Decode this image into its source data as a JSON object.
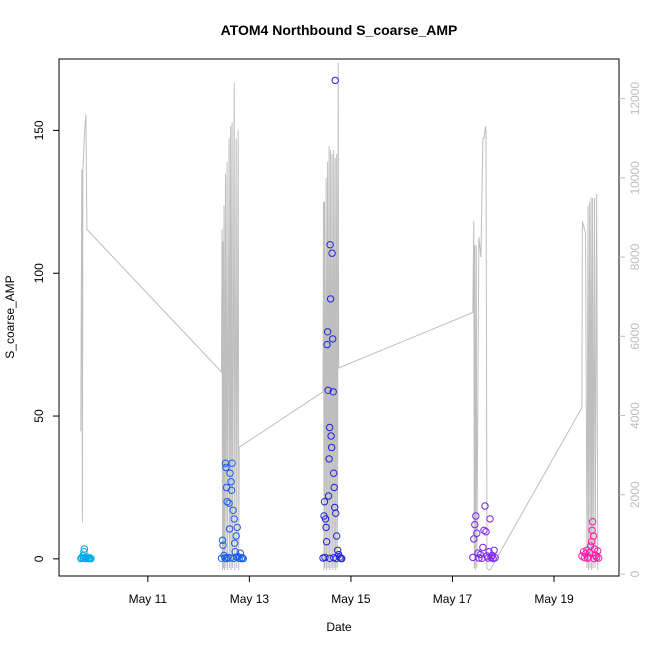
{
  "chart_data": {
    "type": "scatter",
    "title": "ATOM4 Northbound S_coarse_AMP",
    "xlabel": "Date",
    "ylabel": "S_coarse_AMP",
    "x_ticks": [
      {
        "label": "May 11",
        "day": 11.0
      },
      {
        "label": "May 13",
        "day": 13.0
      },
      {
        "label": "May 15",
        "day": 15.0
      },
      {
        "label": "May 17",
        "day": 17.0
      },
      {
        "label": "May 19",
        "day": 19.0
      }
    ],
    "xlim_day": [
      9.25,
      20.28
    ],
    "ylim": [
      -6,
      175
    ],
    "y_ticks": [
      0,
      50,
      100,
      150
    ],
    "y2lim": [
      -50,
      13000
    ],
    "y2_ticks": [
      0,
      2000,
      4000,
      6000,
      8000,
      10000,
      12000
    ],
    "y2_tick_labels": [
      "0",
      "2000",
      "4000",
      "6000",
      "8000",
      "10000",
      "12000"
    ],
    "colors": {
      "line": "#bebebe",
      "axis": "#000000",
      "right_axis": "#bdbdbd",
      "point_palette": [
        "#00a8ec",
        "#1a5cf0",
        "#2222e0",
        "#7a22ee",
        "#c81ee6",
        "#ff1aaa"
      ]
    },
    "series": [
      {
        "color": "#00a8ec",
        "points": [
          [
            9.68,
            0.1
          ],
          [
            9.7,
            0.4
          ],
          [
            9.72,
            1.1
          ],
          [
            9.73,
            0.2
          ],
          [
            9.74,
            2.5
          ],
          [
            9.75,
            3.5
          ],
          [
            9.76,
            0.3
          ],
          [
            9.78,
            0.1
          ],
          [
            9.8,
            0.6
          ],
          [
            9.82,
            0.2
          ],
          [
            9.84,
            0.1
          ],
          [
            9.86,
            0.3
          ],
          [
            9.88,
            0.1
          ]
        ]
      },
      {
        "color": "#1a5cf0",
        "points": [
          [
            12.45,
            0.2
          ],
          [
            12.47,
            6.5
          ],
          [
            12.48,
            4.8
          ],
          [
            12.5,
            1.2
          ],
          [
            12.52,
            0.3
          ],
          [
            12.53,
            33.5
          ],
          [
            12.54,
            32.0
          ],
          [
            12.55,
            25.0
          ],
          [
            12.56,
            20.0
          ],
          [
            12.58,
            0.5
          ],
          [
            12.6,
            19.5
          ],
          [
            12.61,
            10.5
          ],
          [
            12.62,
            30.0
          ],
          [
            12.64,
            27.0
          ],
          [
            12.65,
            24.0
          ],
          [
            12.66,
            33.5
          ],
          [
            12.68,
            17.0
          ],
          [
            12.7,
            14.0
          ],
          [
            12.71,
            5.5
          ],
          [
            12.72,
            2.5
          ],
          [
            12.74,
            8.0
          ],
          [
            12.76,
            11.0
          ],
          [
            12.78,
            0.8
          ],
          [
            12.8,
            0.2
          ],
          [
            12.82,
            2.0
          ],
          [
            12.84,
            0.1
          ],
          [
            12.86,
            0.4
          ],
          [
            12.88,
            0.1
          ],
          [
            12.55,
            0.1
          ],
          [
            12.63,
            0.3
          ],
          [
            12.69,
            0.2
          ],
          [
            12.75,
            0.6
          ]
        ]
      },
      {
        "color": "#2222e0",
        "points": [
          [
            14.45,
            0.3
          ],
          [
            14.47,
            15.0
          ],
          [
            14.48,
            20.0
          ],
          [
            14.5,
            14.0
          ],
          [
            14.51,
            11.0
          ],
          [
            14.52,
            6.0
          ],
          [
            14.53,
            75.0
          ],
          [
            14.54,
            79.5
          ],
          [
            14.55,
            59.0
          ],
          [
            14.56,
            22.0
          ],
          [
            14.57,
            35.0
          ],
          [
            14.58,
            46.0
          ],
          [
            14.59,
            110.0
          ],
          [
            14.6,
            91.0
          ],
          [
            14.61,
            43.0
          ],
          [
            14.62,
            39.0
          ],
          [
            14.63,
            107.0
          ],
          [
            14.64,
            77.0
          ],
          [
            14.65,
            58.5
          ],
          [
            14.66,
            30.0
          ],
          [
            14.67,
            25.0
          ],
          [
            14.68,
            18.0
          ],
          [
            14.69,
            167.5
          ],
          [
            14.7,
            16.0
          ],
          [
            14.72,
            8.0
          ],
          [
            14.74,
            3.0
          ],
          [
            14.76,
            1.5
          ],
          [
            14.78,
            0.6
          ],
          [
            14.8,
            0.2
          ],
          [
            14.82,
            0.1
          ],
          [
            14.49,
            0.5
          ],
          [
            14.58,
            0.2
          ],
          [
            14.66,
            0.4
          ],
          [
            14.71,
            0.1
          ]
        ]
      },
      {
        "color": "#7a22ee",
        "points": [
          [
            17.4,
            0.5
          ],
          [
            17.42,
            7.0
          ],
          [
            17.44,
            12.0
          ],
          [
            17.46,
            15.0
          ],
          [
            17.48,
            9.0
          ],
          [
            17.5,
            2.0
          ],
          [
            17.52,
            0.3
          ],
          [
            17.55,
            1.5
          ],
          [
            17.58,
            0.2
          ],
          [
            17.6,
            4.0
          ],
          [
            17.62,
            10.0
          ],
          [
            17.64,
            18.5
          ],
          [
            17.66,
            9.5
          ],
          [
            17.68,
            1.0
          ],
          [
            17.7,
            0.3
          ],
          [
            17.72,
            2.5
          ],
          [
            17.74,
            14.0
          ],
          [
            17.76,
            0.5
          ],
          [
            17.78,
            1.2
          ],
          [
            17.8,
            0.1
          ],
          [
            17.82,
            3.0
          ],
          [
            17.84,
            0.4
          ]
        ]
      },
      {
        "color": "#ff1aaa",
        "points": [
          [
            19.55,
            1.0
          ],
          [
            19.58,
            2.5
          ],
          [
            19.6,
            0.4
          ],
          [
            19.62,
            1.8
          ],
          [
            19.65,
            3.0
          ],
          [
            19.68,
            0.6
          ],
          [
            19.7,
            2.2
          ],
          [
            19.72,
            4.5
          ],
          [
            19.74,
            6.0
          ],
          [
            19.75,
            10.0
          ],
          [
            19.76,
            13.0
          ],
          [
            19.78,
            8.0
          ],
          [
            19.8,
            3.5
          ],
          [
            19.82,
            1.2
          ],
          [
            19.84,
            0.5
          ],
          [
            19.86,
            2.8
          ],
          [
            19.88,
            0.3
          ],
          [
            19.66,
            0.2
          ],
          [
            19.79,
            0.1
          ]
        ]
      }
    ],
    "line_series": {
      "axis": "right",
      "points": [
        [
          9.68,
          3600
        ],
        [
          9.7,
          10200
        ],
        [
          9.71,
          1300
        ],
        [
          9.72,
          10200
        ],
        [
          9.74,
          10800
        ],
        [
          9.76,
          11300
        ],
        [
          9.78,
          11600
        ],
        [
          9.8,
          8700
        ],
        [
          12.45,
          5100
        ],
        [
          12.46,
          8700
        ],
        [
          12.47,
          100
        ],
        [
          12.48,
          8400
        ],
        [
          12.49,
          150
        ],
        [
          12.5,
          9300
        ],
        [
          12.51,
          100
        ],
        [
          12.53,
          10100
        ],
        [
          12.54,
          150
        ],
        [
          12.56,
          10400
        ],
        [
          12.57,
          100
        ],
        [
          12.6,
          11000
        ],
        [
          12.61,
          150
        ],
        [
          12.63,
          11300
        ],
        [
          12.64,
          100
        ],
        [
          12.66,
          11400
        ],
        [
          12.67,
          150
        ],
        [
          12.7,
          12400
        ],
        [
          12.71,
          100
        ],
        [
          12.74,
          11000
        ],
        [
          12.75,
          150
        ],
        [
          12.78,
          11200
        ],
        [
          12.79,
          100
        ],
        [
          12.8,
          3200
        ],
        [
          14.45,
          4600
        ],
        [
          14.46,
          9400
        ],
        [
          14.47,
          100
        ],
        [
          14.48,
          9400
        ],
        [
          14.49,
          150
        ],
        [
          14.51,
          10000
        ],
        [
          14.52,
          100
        ],
        [
          14.54,
          10400
        ],
        [
          14.55,
          150
        ],
        [
          14.57,
          10800
        ],
        [
          14.58,
          100
        ],
        [
          14.6,
          10700
        ],
        [
          14.61,
          150
        ],
        [
          14.63,
          10600
        ],
        [
          14.64,
          100
        ],
        [
          14.66,
          10700
        ],
        [
          14.67,
          150
        ],
        [
          14.69,
          10500
        ],
        [
          14.7,
          100
        ],
        [
          14.72,
          10600
        ],
        [
          14.73,
          150
        ],
        [
          14.74,
          3200
        ],
        [
          14.75,
          12900
        ],
        [
          14.76,
          5200
        ],
        [
          17.4,
          6600
        ],
        [
          17.42,
          8900
        ],
        [
          17.43,
          150
        ],
        [
          17.44,
          8300
        ],
        [
          17.45,
          100
        ],
        [
          17.47,
          8300
        ],
        [
          17.48,
          150
        ],
        [
          17.52,
          8500
        ],
        [
          17.56,
          8000
        ],
        [
          17.58,
          9500
        ],
        [
          17.6,
          11000
        ],
        [
          17.62,
          11000
        ],
        [
          17.65,
          11300
        ],
        [
          17.66,
          11200
        ],
        [
          17.68,
          150
        ],
        [
          17.72,
          100
        ],
        [
          17.74,
          100
        ],
        [
          19.55,
          4200
        ],
        [
          19.56,
          8900
        ],
        [
          19.6,
          8700
        ],
        [
          19.62,
          8600
        ],
        [
          19.65,
          150
        ],
        [
          19.67,
          9300
        ],
        [
          19.68,
          100
        ],
        [
          19.7,
          9400
        ],
        [
          19.71,
          150
        ],
        [
          19.73,
          9500
        ],
        [
          19.74,
          100
        ],
        [
          19.76,
          9500
        ],
        [
          19.77,
          150
        ],
        [
          19.8,
          9500
        ],
        [
          19.81,
          150
        ],
        [
          19.84,
          9600
        ],
        [
          19.86,
          100
        ]
      ]
    }
  }
}
